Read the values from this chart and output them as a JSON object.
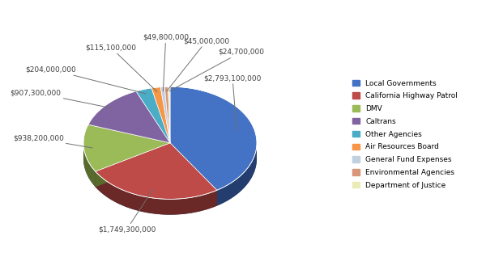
{
  "labels": [
    "Local Governments",
    "California Highway Patrol",
    "DMV",
    "Caltrans",
    "Other Agencies",
    "Air Resources Board",
    "General Fund Expenses",
    "Environmental Agencies",
    "Department of Justice"
  ],
  "values": [
    2793100000,
    1749300000,
    938200000,
    907300000,
    204000000,
    115100000,
    49800000,
    45000000,
    24700000
  ],
  "colors": [
    "#4472C4",
    "#BE4B48",
    "#9BBB59",
    "#8064A2",
    "#4BACC6",
    "#F79646",
    "#C0D0E0",
    "#D9967A",
    "#EBEBB8"
  ],
  "dark_colors": [
    "#17375E",
    "#632523",
    "#4F6228",
    "#3F3151",
    "#17375E",
    "#974706",
    "#808080",
    "#943634",
    "#9BBB59"
  ],
  "label_texts": [
    "$2,793,100,000",
    "$1,749,300,000",
    "$938,200,000",
    "$907,300,000",
    "$204,000,000",
    "$115,100,000",
    "$49,800,000",
    "$45,000,000",
    "$24,700,000"
  ],
  "figsize": [
    6.0,
    3.39
  ],
  "dpi": 100
}
